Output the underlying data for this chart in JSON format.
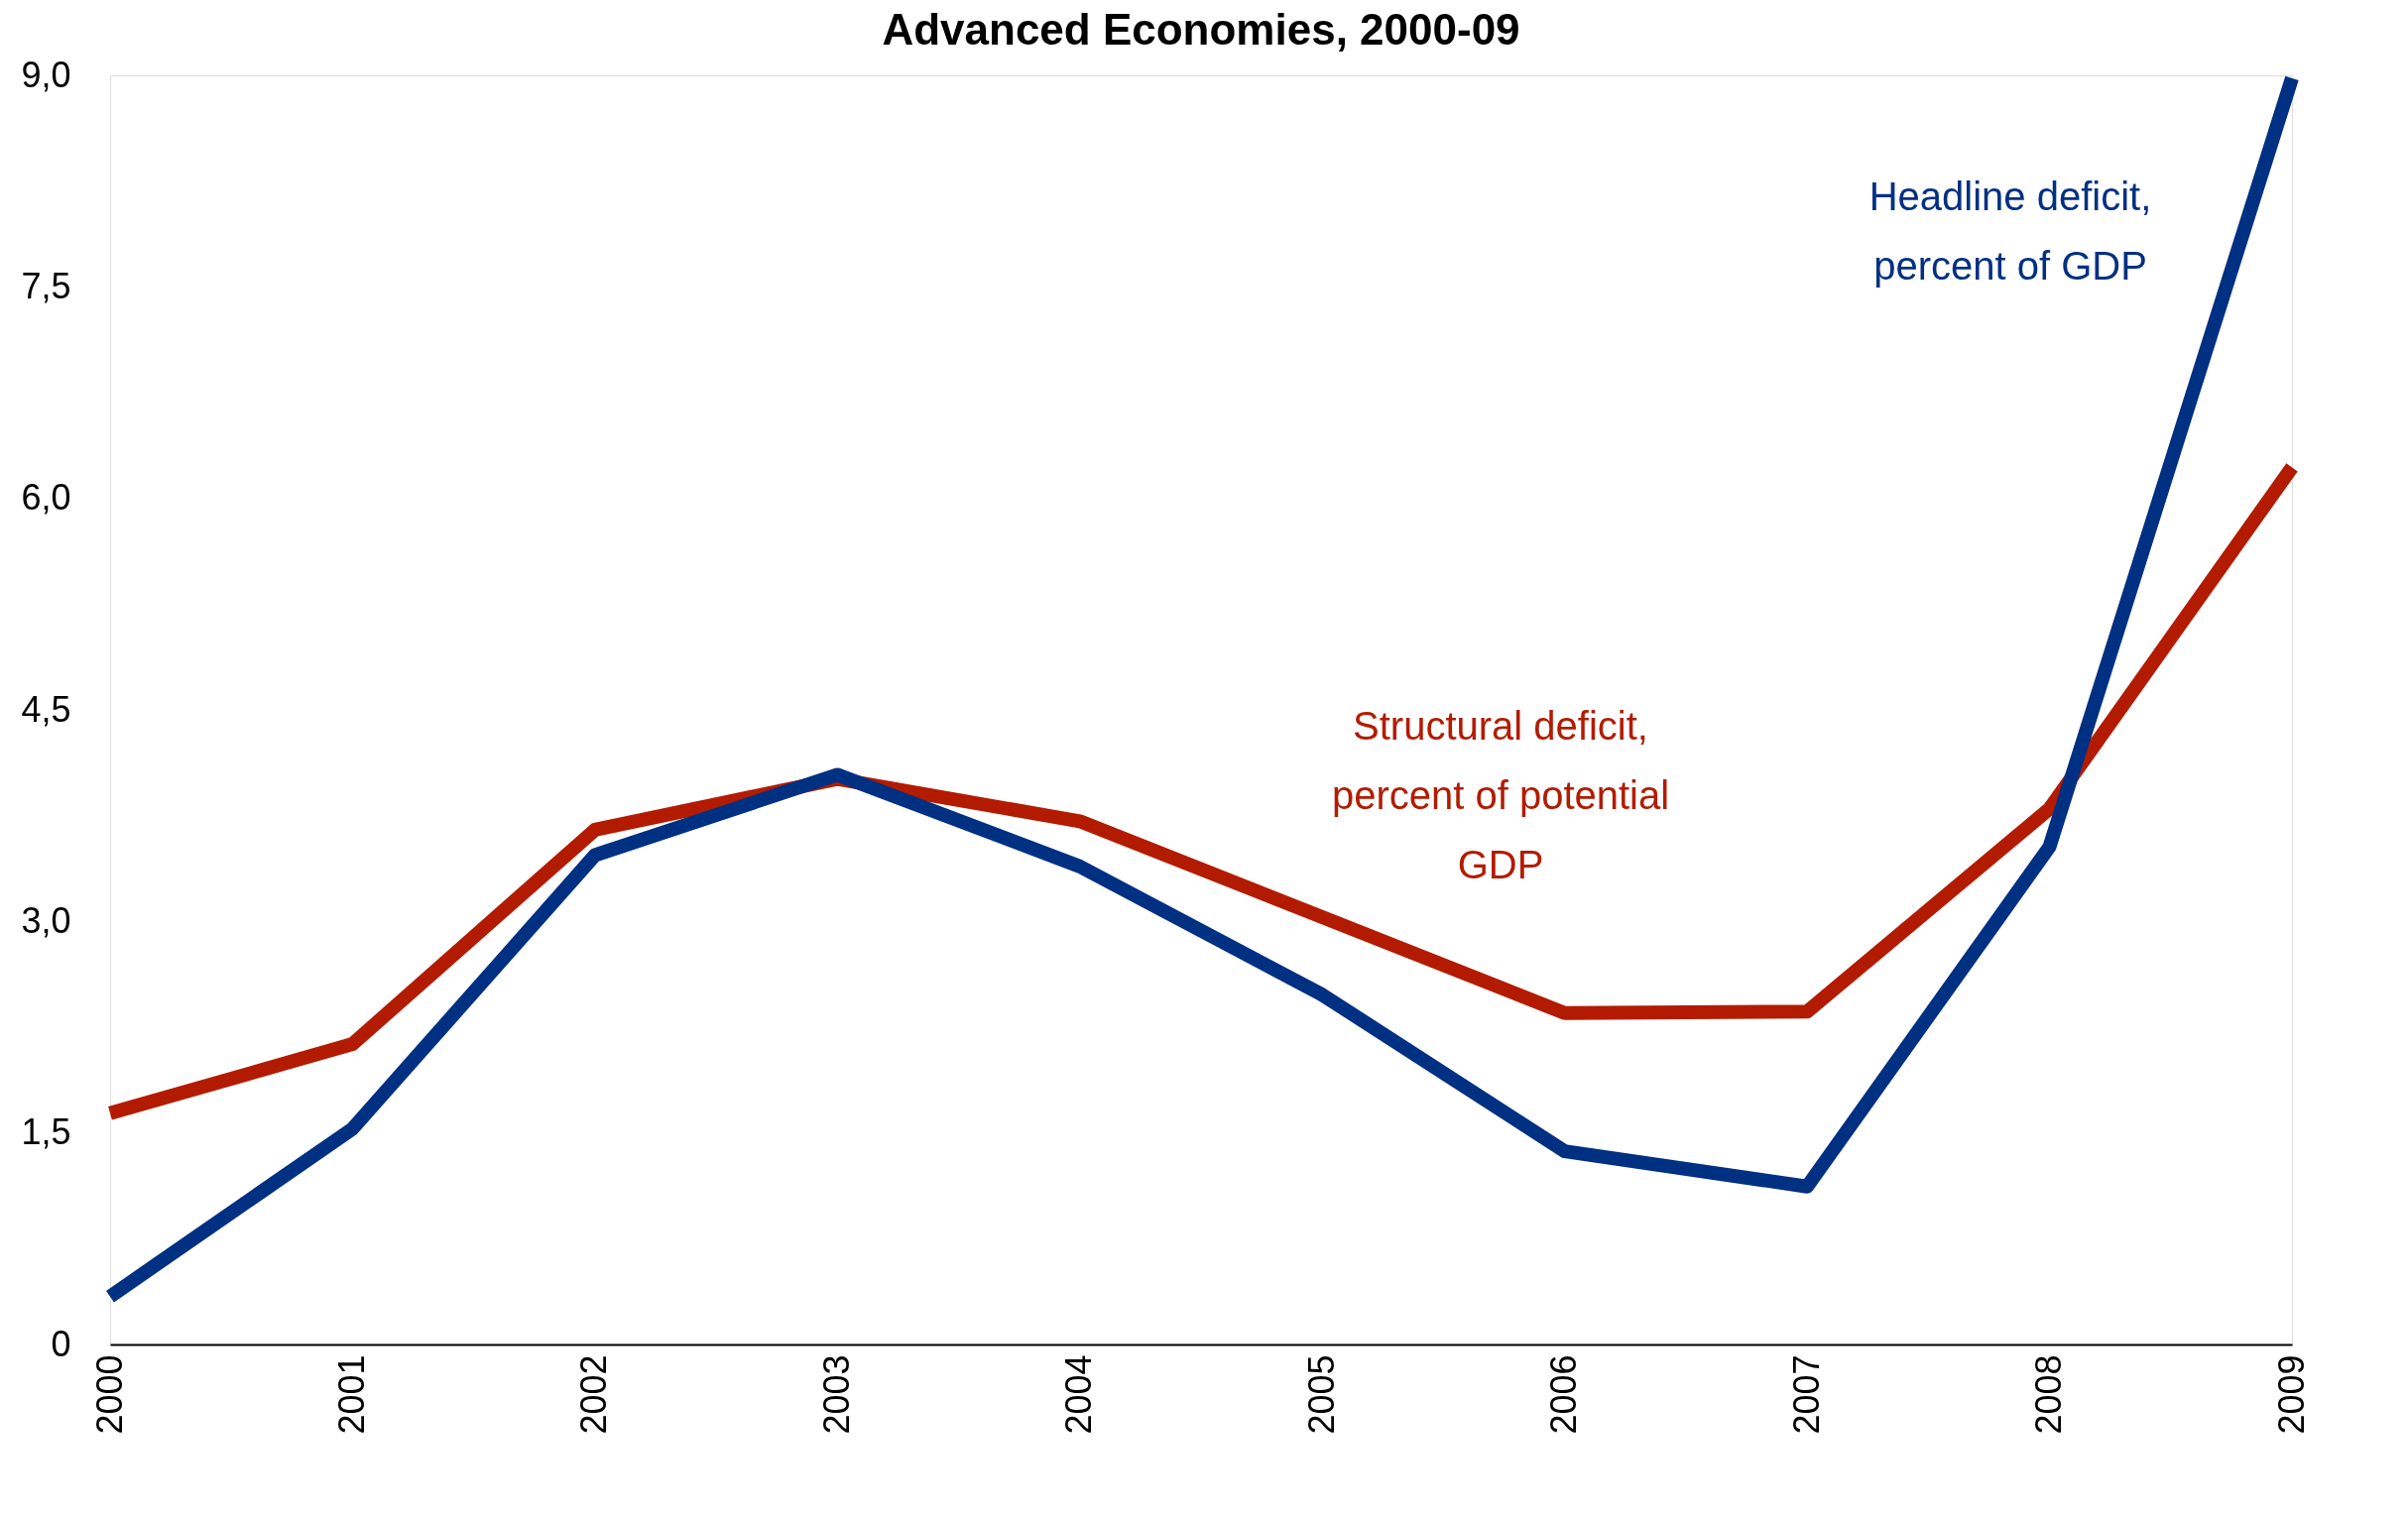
{
  "chart_data": {
    "type": "line",
    "title": "Advanced Economies, 2000-09",
    "categories": [
      "2000",
      "2001",
      "2002",
      "2003",
      "2004",
      "2005",
      "2006",
      "2007",
      "2008",
      "2009"
    ],
    "series": [
      {
        "name": "Structural deficit, percent of potential GDP",
        "color": "#b31b00",
        "values": [
          1.64,
          2.13,
          3.65,
          4.01,
          3.71,
          3.03,
          2.35,
          2.36,
          3.8,
          6.22
        ]
      },
      {
        "name": "Headline deficit, percent of GDP",
        "color": "#003082",
        "values": [
          0.34,
          1.53,
          3.47,
          4.04,
          3.39,
          2.48,
          1.37,
          1.12,
          3.53,
          8.98
        ]
      }
    ],
    "ylim": [
      0,
      9
    ],
    "yticks": [
      0,
      {
        "value": 1.5,
        "label": "1,5"
      },
      {
        "value": 3,
        "label": "3,0"
      },
      {
        "value": 4.5,
        "label": "4,5"
      },
      {
        "value": 6,
        "label": "6,0"
      },
      {
        "value": 7.5,
        "label": "7,5"
      },
      {
        "value": 9,
        "label": "9,0"
      }
    ],
    "grid": false,
    "marker": "none",
    "line_style": "solid"
  }
}
